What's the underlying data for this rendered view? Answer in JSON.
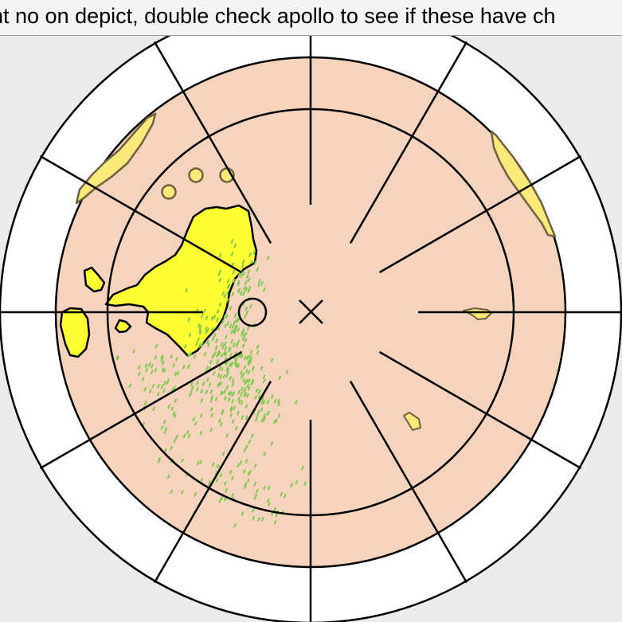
{
  "note": {
    "text": "ht no on depict, double check apollo to see if these have ch"
  },
  "colors": {
    "background": "#ebebeb",
    "outer_ring": "#ffffff",
    "field": "#f5d3bd",
    "primary_obstruction": "#ffff33",
    "secondary_obstruction": "#fbe97a",
    "obstruction_outline": "#000000",
    "secondary_outline": "#6e6242",
    "points": "#7ccb4c",
    "lines": "#000000"
  },
  "icons": {
    "center": "cross-icon",
    "marker": "circle-marker-icon"
  }
}
